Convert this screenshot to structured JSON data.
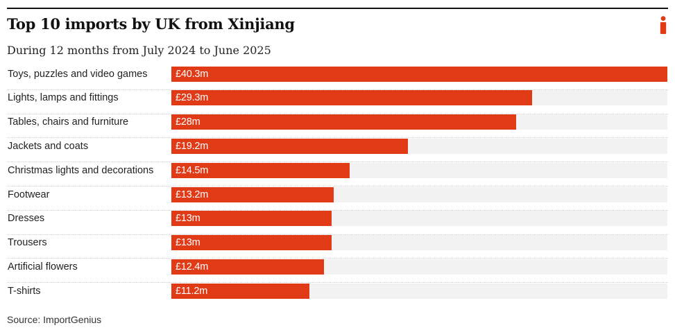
{
  "header": {
    "title": "Top 10 imports by UK from Xinjiang",
    "subtitle": "During 12 months from July 2024 to June 2025"
  },
  "brand": {
    "logo_icon": "i-logo-icon",
    "accent_color": "#e03a17"
  },
  "footer": {
    "source": "Source: ImportGenius"
  },
  "chart_data": {
    "type": "bar",
    "orientation": "horizontal",
    "title": "Top 10 imports by UK from Xinjiang",
    "subtitle": "During 12 months from July 2024 to June 2025",
    "xlabel": "",
    "ylabel": "",
    "unit": "£m",
    "xlim": [
      0,
      40.3
    ],
    "grid": false,
    "bar_color": "#e03a17",
    "track_color": "#f2f2f2",
    "categories": [
      "Toys, puzzles and video games",
      "Lights, lamps and fittings",
      "Tables, chairs and furniture",
      "Jackets and coats",
      "Christmas lights and decorations",
      "Footwear",
      "Dresses",
      "Trousers",
      "Artificial flowers",
      "T-shirts"
    ],
    "values": [
      40.3,
      29.3,
      28,
      19.2,
      14.5,
      13.2,
      13,
      13,
      12.4,
      11.2
    ],
    "data_labels": [
      "£40.3m",
      "£29.3m",
      "£28m",
      "£19.2m",
      "£14.5m",
      "£13.2m",
      "£13m",
      "£13m",
      "£12.4m",
      "£11.2m"
    ],
    "source": "Source: ImportGenius"
  }
}
